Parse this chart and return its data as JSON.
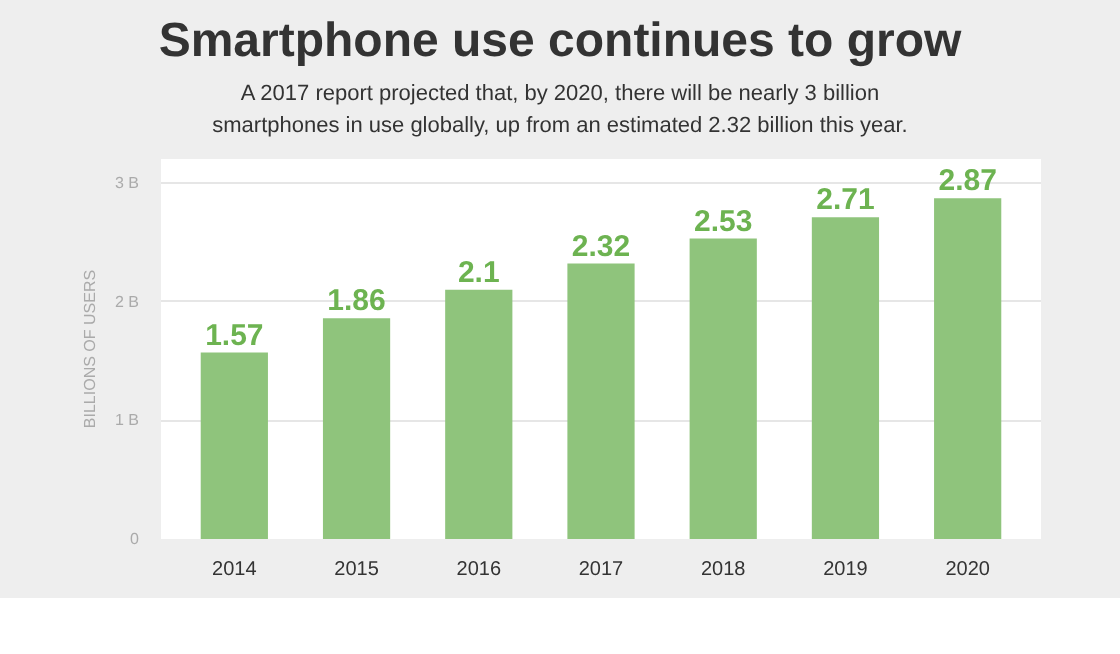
{
  "chart_data": {
    "type": "bar",
    "title": "Smartphone use continues to grow",
    "subtitle": "A 2017 report projected that, by 2020, there will be nearly 3 billion smartphones in use globally, up from an estimated 2.32 billion this year.",
    "ylabel": "BILLIONS OF USERS",
    "categories": [
      "2014",
      "2015",
      "2016",
      "2017",
      "2018",
      "2019",
      "2020"
    ],
    "values": [
      1.57,
      1.86,
      2.1,
      2.32,
      2.53,
      2.71,
      2.87
    ],
    "color": "#8fc47c",
    "ylim": [
      0,
      3.2
    ],
    "yticks": [
      0,
      {
        "value": 1,
        "label": "1 B"
      },
      {
        "value": 2,
        "label": "2 B"
      },
      {
        "value": 3,
        "label": "3 B"
      }
    ],
    "grid": "y",
    "data_labels": true
  }
}
